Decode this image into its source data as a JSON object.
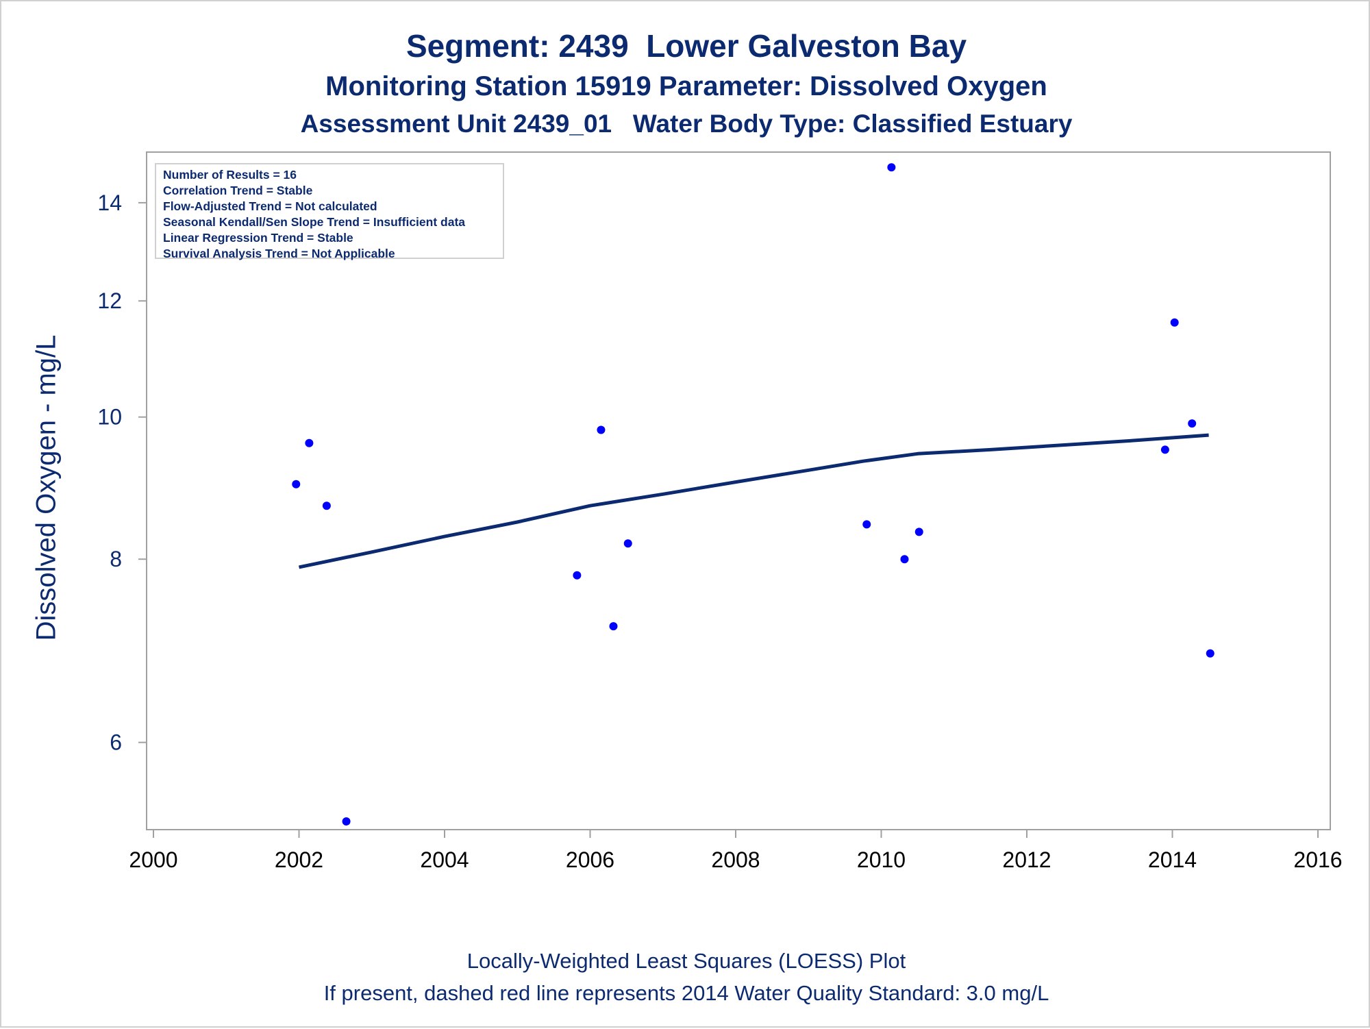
{
  "title": "Segment: 2439  Lower Galveston Bay",
  "subtitle_1": "Monitoring Station 15919 Parameter: Dissolved Oxygen",
  "subtitle_2": "Assessment Unit 2439_01   Water Body Type: Classified Estuary",
  "stats": [
    "Number of Results = 16",
    "Correlation Trend = Stable",
    "Flow-Adjusted Trend = Not calculated",
    "Seasonal Kendall/Sen Slope Trend = Insufficient data",
    "Linear Regression Trend = Stable",
    "Survival Analysis Trend = Not Applicable"
  ],
  "footnote_1": "Locally-Weighted Least Squares (LOESS) Plot",
  "footnote_2": "If present, dashed red line represents 2014 Water Quality Standard: 3.0 mg/L",
  "colors": {
    "text": "#0c2a6f",
    "points": "#0000ff",
    "loess": "#0c2a6f",
    "frame": "#a0a0a0"
  },
  "chart_data": {
    "type": "scatter",
    "title": "Segment: 2439  Lower Galveston Bay",
    "xlabel": "",
    "ylabel": "Dissolved Oxygen - mg/L",
    "xlim": [
      2000,
      2016
    ],
    "ylim": [
      5.3,
      14.9
    ],
    "y_scale": "log",
    "grid": false,
    "x_ticks": [
      2000,
      2002,
      2004,
      2006,
      2008,
      2010,
      2012,
      2014,
      2016
    ],
    "y_ticks": [
      6,
      8,
      10,
      12,
      14
    ],
    "x_tick_labels": [
      "2000",
      "2002",
      "2004",
      "2006",
      "2008",
      "2010",
      "2012",
      "2014",
      "2016"
    ],
    "y_tick_labels": [
      "6",
      "8",
      "10",
      "12",
      "14"
    ],
    "series": [
      {
        "type": "scatter",
        "x": [
          2001.96,
          2002.14,
          2002.38,
          2002.65,
          2005.82,
          2006.15,
          2006.32,
          2006.52,
          2009.8,
          2010.14,
          2010.32,
          2010.52,
          2013.9,
          2014.03,
          2014.27,
          2014.52
        ],
        "y": [
          9.0,
          9.6,
          8.7,
          5.3,
          7.8,
          9.8,
          7.2,
          8.2,
          8.45,
          14.8,
          8.0,
          8.35,
          9.5,
          11.6,
          9.9,
          6.9
        ]
      },
      {
        "type": "line",
        "x": [
          2002.0,
          2003.0,
          2004.0,
          2005.0,
          2006.0,
          2007.0,
          2008.0,
          2009.0,
          2009.75,
          2010.5,
          2011.5,
          2012.5,
          2013.5,
          2014.5
        ],
        "y": [
          7.9,
          8.09,
          8.29,
          8.48,
          8.7,
          8.86,
          9.03,
          9.2,
          9.33,
          9.44,
          9.5,
          9.57,
          9.64,
          9.72
        ]
      }
    ]
  }
}
